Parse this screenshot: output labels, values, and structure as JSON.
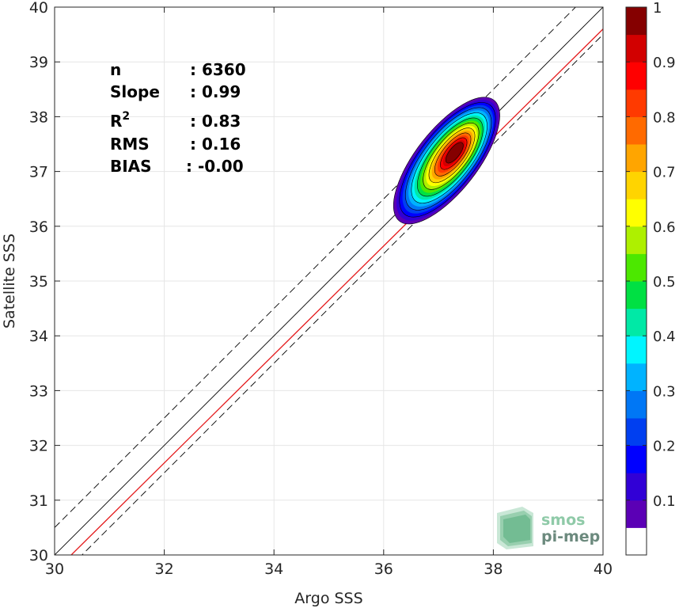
{
  "chart_data": {
    "type": "scatter",
    "xlabel": "Argo SSS",
    "ylabel": "Satellite SSS",
    "xlim": [
      30,
      40
    ],
    "ylim": [
      30,
      40
    ],
    "xticks": [
      "30",
      "32",
      "34",
      "36",
      "38",
      "40"
    ],
    "yticks": [
      "30",
      "31",
      "32",
      "33",
      "34",
      "35",
      "36",
      "37",
      "38",
      "39",
      "40"
    ],
    "grid": true,
    "reference_lines": {
      "identity": {
        "slope": 1,
        "intercept": 0,
        "color": "#000000",
        "style": "solid"
      },
      "regression": {
        "slope": 0.99,
        "intercept": 0.0,
        "color": "#e41a1c",
        "style": "solid"
      },
      "upper_bound": {
        "slope": 1,
        "intercept": 0.5,
        "color": "#000000",
        "style": "dashed"
      },
      "lower_bound": {
        "slope": 1,
        "intercept": -0.5,
        "color": "#000000",
        "style": "dashed"
      }
    },
    "density": {
      "center": [
        37.3,
        37.35
      ],
      "levels": [
        0.1,
        0.2,
        0.3,
        0.4,
        0.5,
        0.6,
        0.7,
        0.8,
        0.9
      ],
      "peak": 1.0
    },
    "stats": [
      {
        "label": "n",
        "value": ": 6360"
      },
      {
        "label": "Slope",
        "value": ": 0.99"
      },
      {
        "label": "R",
        "sup": "2",
        "value": ": 0.83"
      },
      {
        "label": "RMS",
        "value": ": 0.16"
      },
      {
        "label": "BIAS",
        "value": ": -0.00"
      }
    ],
    "colorbar": {
      "ticks": [
        "0.1",
        "0.2",
        "0.3",
        "0.4",
        "0.5",
        "0.6",
        "0.7",
        "0.8",
        "0.9",
        "1"
      ],
      "colors": [
        "#ffffff",
        "#5b00b5",
        "#3100d6",
        "#0000ff",
        "#003ff0",
        "#0077f5",
        "#00b3ff",
        "#00f5ff",
        "#00e9a6",
        "#00e043",
        "#4ce800",
        "#aef000",
        "#ffff00",
        "#ffd400",
        "#ffa500",
        "#ff6a00",
        "#ff3a00",
        "#ff0000",
        "#d20000",
        "#850000"
      ]
    }
  },
  "watermark": {
    "line1": "smos",
    "line2": "pi-mep"
  }
}
